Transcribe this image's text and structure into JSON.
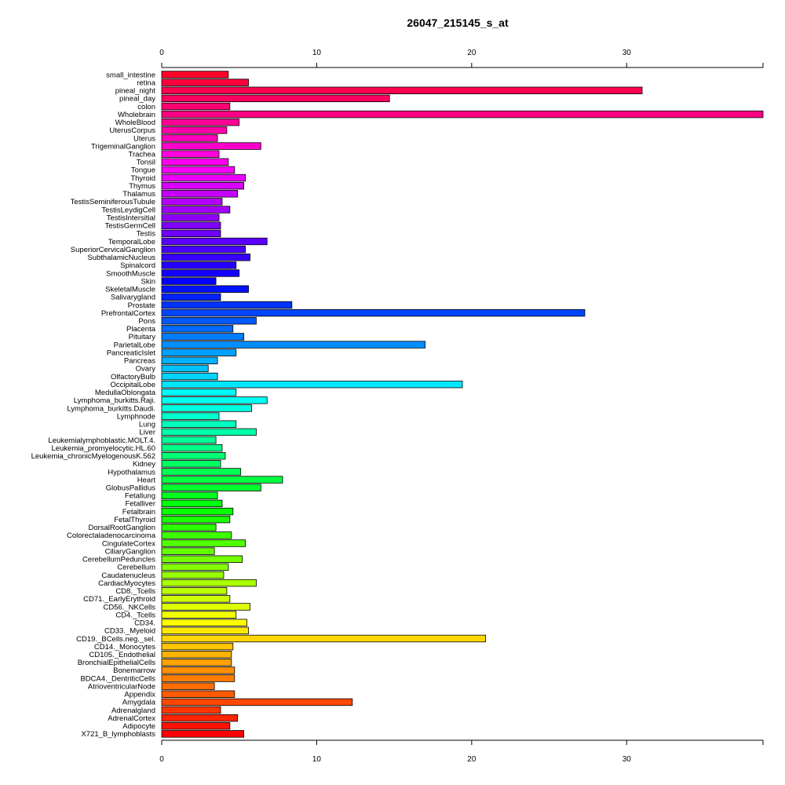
{
  "chart_data": {
    "type": "bar",
    "orientation": "horizontal",
    "title": "26047_215145_s_at",
    "xlabel": "",
    "ylabel": "",
    "xlim": [
      0,
      38.8
    ],
    "x_ticks": [
      0,
      10,
      20,
      30
    ],
    "x_tick_labels": [
      "0",
      "10",
      "20",
      "30"
    ],
    "grid": false,
    "legend": "none",
    "categories": [
      "small_intestine",
      "retina",
      "pineal_night",
      "pineal_day",
      "colon",
      "Wholebrain",
      "WholeBlood",
      "UterusCorpus",
      "Uterus",
      "TrigeminalGanglion",
      "Trachea",
      "Tonsil",
      "Tongue",
      "Thyroid",
      "Thymus",
      "Thalamus",
      "TestisSeminiferousTubule",
      "TestisLeydigCell",
      "TestisIntersitial",
      "TestisGermCell",
      "Testis",
      "TemporalLobe",
      "SuperiorCervicalGanglion",
      "SubthalamicNucleus",
      "Spinalcord",
      "SmoothMuscle",
      "Skin",
      "SkeletalMuscle",
      "Salivarygland",
      "Prostate",
      "PrefrontalCortex",
      "Pons",
      "Placenta",
      "Pituitary",
      "ParietalLobe",
      "PancreaticIslet",
      "Pancreas",
      "Ovary",
      "OlfactoryBulb",
      "OccipitalLobe",
      "MedullaOblongata",
      "Lymphoma_burkitts.Raji.",
      "Lymphoma_burkitts.Daudi.",
      "Lymphnode",
      "Lung",
      "Liver",
      "Leukemialymphoblastic.MOLT.4.",
      "Leukemia_promyelocytic.HL.60",
      "Leukemia_chronicMyelogenousK.562",
      "Kidney",
      "Hypothalamus",
      "Heart",
      "GlobusPallidus",
      "Fetallung",
      "Fetalliver",
      "Fetalbrain",
      "FetalThyroid",
      "DorsalRootGanglion",
      "Colorectaladenocarcinoma",
      "CingulateCortex",
      "CiliaryGanglion",
      "CerebellumPeduncles",
      "Cerebellum",
      "Caudatenucleus",
      "CardiacMyocytes",
      "CD8._Tcells",
      "CD71._EarlyErythroid",
      "CD56._NKCells",
      "CD4._Tcells",
      "CD34.",
      "CD33._Myeloid",
      "CD19._BCells.neg._sel.",
      "CD14._Monocytes",
      "CD105._Endothelial",
      "BronchialEpithelialCells",
      "Bonemarrow",
      "BDCA4._DentriticCells",
      "AtrioventricularNode",
      "Appendix",
      "Amygdala",
      "Adrenalgland",
      "AdrenalCortex",
      "Adipocyte",
      "X721_B_lymphoblasts"
    ],
    "values": [
      4.3,
      5.6,
      31.0,
      14.7,
      4.4,
      38.8,
      5.0,
      4.2,
      3.6,
      6.4,
      3.7,
      4.3,
      4.7,
      5.4,
      5.3,
      4.9,
      3.9,
      4.4,
      3.7,
      3.8,
      3.8,
      6.8,
      5.4,
      5.7,
      4.8,
      5.0,
      3.5,
      5.6,
      3.8,
      8.4,
      27.3,
      6.1,
      4.6,
      5.3,
      17.0,
      4.8,
      3.6,
      3.0,
      3.6,
      19.4,
      4.8,
      6.8,
      5.8,
      3.7,
      4.8,
      6.1,
      3.5,
      3.9,
      4.1,
      3.8,
      5.1,
      7.8,
      6.4,
      3.6,
      3.9,
      4.6,
      4.4,
      3.5,
      4.5,
      5.4,
      3.4,
      5.2,
      4.3,
      4.0,
      6.1,
      4.2,
      4.4,
      5.7,
      4.8,
      5.5,
      5.6,
      20.9,
      4.6,
      4.5,
      4.5,
      4.7,
      4.7,
      3.4,
      4.7,
      12.3,
      3.8,
      4.9,
      4.4,
      5.3
    ]
  }
}
